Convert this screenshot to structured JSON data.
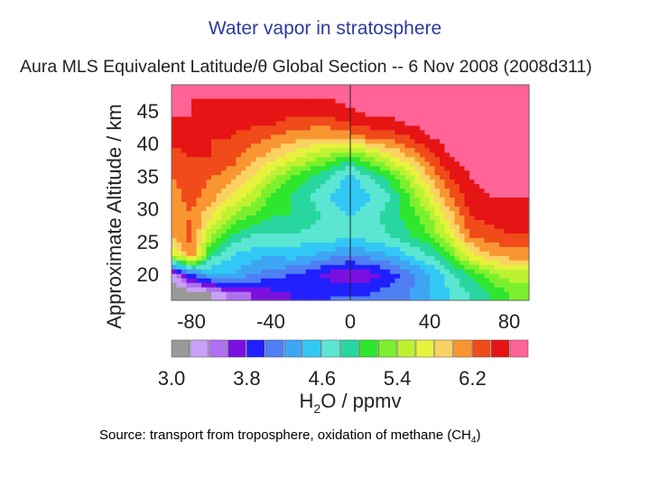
{
  "slide_title": "Water vapor in stratosphere",
  "figure_title": "Aura MLS Equivalent Latitude/θ Global Section -- 6 Nov 2008 (2008d311)",
  "source_prefix": "Source: transport from troposphere, oxidation of methane (CH",
  "source_sub": "4",
  "source_suffix": ")",
  "chart_data": {
    "type": "heatmap",
    "title": "Aura MLS Equivalent Latitude/θ Global Section -- 6 Nov 2008 (2008d311)",
    "xlabel": "",
    "ylabel": "Approximate Altitude / km",
    "x_ticks": [
      -80,
      -40,
      0,
      40,
      80
    ],
    "x_tick_labels": [
      "-80",
      "-40",
      "0",
      "40",
      "80"
    ],
    "y_ticks": [
      20,
      25,
      30,
      35,
      40,
      45
    ],
    "y_tick_labels": [
      "20",
      "25",
      "30",
      "35",
      "40",
      "45"
    ],
    "xlim": [
      -90,
      90
    ],
    "ylim": [
      16,
      49
    ],
    "x": [
      -90,
      -80,
      -70,
      -60,
      -50,
      -40,
      -30,
      -20,
      -10,
      0,
      10,
      20,
      30,
      40,
      50,
      60,
      70,
      80,
      90
    ],
    "y": [
      17,
      20,
      23,
      26,
      29,
      32,
      35,
      38,
      41,
      44,
      47
    ],
    "z": [
      [
        3.0,
        3.0,
        3.2,
        3.5,
        3.6,
        3.7,
        3.8,
        3.9,
        4.0,
        4.0,
        4.0,
        4.1,
        4.2,
        4.4,
        4.6,
        4.8,
        5.0,
        5.2,
        5.2
      ],
      [
        3.3,
        4.0,
        4.4,
        4.4,
        4.2,
        4.1,
        4.0,
        3.9,
        3.7,
        3.6,
        3.7,
        3.9,
        4.1,
        4.4,
        4.7,
        5.0,
        5.3,
        5.5,
        5.5
      ],
      [
        5.5,
        6.2,
        4.9,
        4.6,
        4.5,
        4.4,
        4.5,
        4.4,
        4.3,
        4.2,
        4.3,
        4.4,
        4.6,
        4.8,
        5.2,
        5.7,
        6.0,
        6.1,
        6.1
      ],
      [
        6.0,
        6.3,
        5.4,
        5.0,
        4.8,
        4.8,
        4.8,
        4.7,
        4.7,
        4.7,
        4.7,
        4.8,
        5.0,
        5.2,
        5.6,
        6.2,
        6.3,
        6.4,
        6.4
      ],
      [
        6.0,
        6.2,
        5.8,
        5.4,
        5.2,
        5.0,
        5.0,
        4.9,
        4.7,
        4.6,
        4.7,
        4.9,
        5.1,
        5.4,
        5.9,
        6.4,
        6.5,
        6.5,
        6.5
      ],
      [
        6.1,
        6.3,
        6.1,
        5.8,
        5.5,
        5.2,
        5.0,
        4.8,
        4.6,
        4.4,
        4.6,
        4.8,
        5.2,
        5.7,
        6.2,
        6.5,
        6.6,
        6.6,
        6.6
      ],
      [
        6.2,
        6.3,
        6.2,
        6.1,
        5.8,
        5.5,
        5.2,
        5.0,
        4.8,
        4.5,
        4.8,
        5.1,
        5.5,
        6.0,
        6.4,
        6.6,
        6.7,
        6.7,
        6.7
      ],
      [
        6.3,
        6.4,
        6.4,
        6.3,
        6.1,
        5.9,
        5.7,
        5.5,
        5.3,
        5.1,
        5.4,
        5.7,
        6.0,
        6.3,
        6.6,
        6.7,
        6.7,
        6.7,
        6.7
      ],
      [
        6.5,
        6.5,
        6.4,
        6.4,
        6.3,
        6.2,
        6.1,
        6.0,
        6.0,
        6.1,
        6.2,
        6.3,
        6.4,
        6.6,
        6.7,
        6.7,
        6.7,
        6.7,
        6.7
      ],
      [
        6.6,
        6.6,
        6.5,
        6.5,
        6.5,
        6.5,
        6.4,
        6.4,
        6.4,
        6.5,
        6.6,
        6.6,
        6.7,
        6.7,
        6.7,
        6.7,
        6.7,
        6.7,
        6.7
      ],
      [
        6.6,
        6.6,
        6.6,
        6.6,
        6.6,
        6.6,
        6.6,
        6.6,
        6.6,
        6.7,
        6.7,
        6.7,
        6.7,
        6.7,
        6.7,
        6.7,
        6.7,
        6.7,
        6.7
      ]
    ],
    "colorbar": {
      "label_main": "H",
      "label_sub": "2",
      "label_rest": "O / ppmv",
      "levels": [
        3.0,
        3.2,
        3.4,
        3.6,
        3.8,
        4.0,
        4.2,
        4.4,
        4.6,
        4.8,
        5.0,
        5.2,
        5.4,
        5.6,
        5.8,
        6.0,
        6.2,
        6.4,
        6.6
      ],
      "tick_values": [
        3.0,
        3.8,
        4.6,
        5.4,
        6.2
      ],
      "tick_labels": [
        "3.0",
        "3.8",
        "4.6",
        "5.4",
        "6.2"
      ],
      "colors": [
        "#999999",
        "#c8a0f5",
        "#b070f0",
        "#7a10e0",
        "#2020ff",
        "#4f7ff2",
        "#3ea5f5",
        "#32c8f5",
        "#5ae6d2",
        "#28d79f",
        "#2ee62e",
        "#7df02e",
        "#bdf232",
        "#e8f23c",
        "#fad264",
        "#fa9632",
        "#f04b19",
        "#e61414",
        "#ff6496"
      ]
    }
  }
}
